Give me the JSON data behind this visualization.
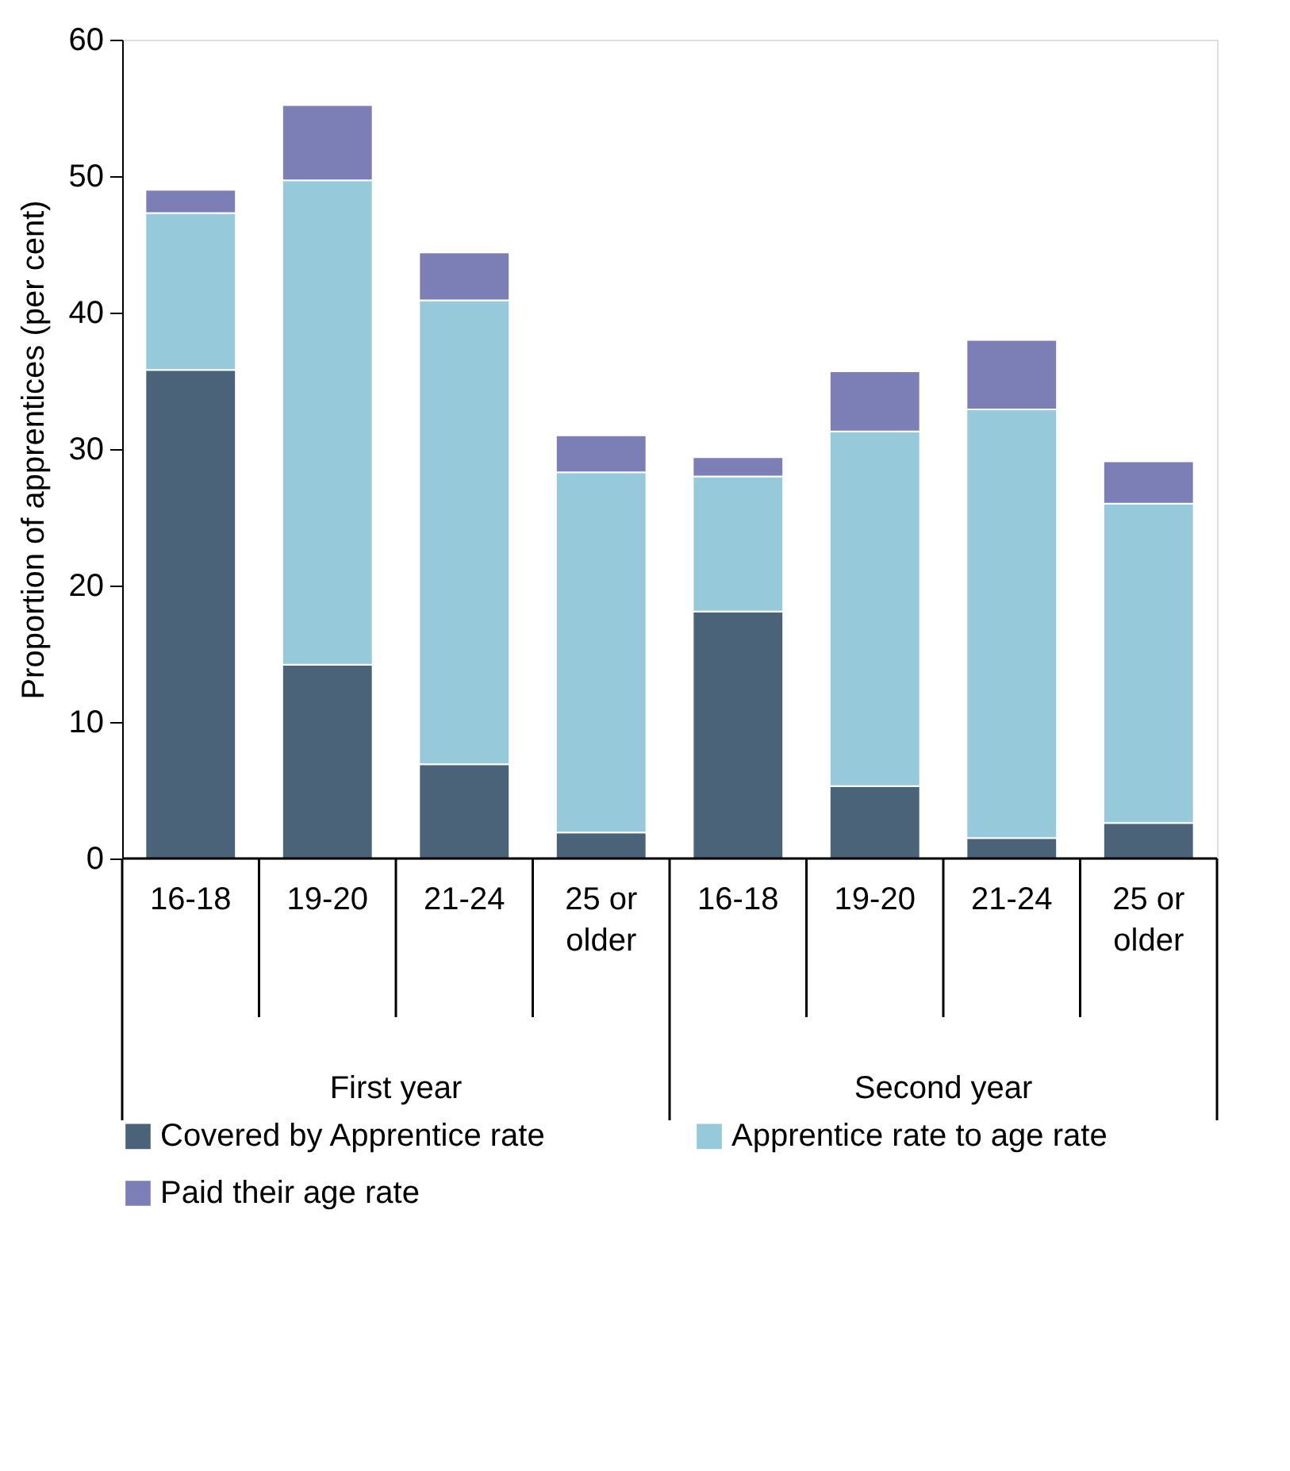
{
  "chart_data": {
    "type": "bar",
    "stacked": true,
    "categories": [
      "16-18",
      "19-20",
      "21-24",
      "25 or older",
      "16-18",
      "19-20",
      "21-24",
      "25 or older"
    ],
    "annotations": [
      "First year",
      "Second year"
    ],
    "ylabel": "Proportion of apprentices (per cent)",
    "ylim": [
      0,
      60
    ],
    "yticks": [
      0,
      10,
      20,
      30,
      40,
      50,
      60
    ],
    "grid": false,
    "legend": "bottom",
    "series": [
      {
        "name": "Covered by Apprentice rate",
        "color": "#4a6378",
        "values": [
          35.8,
          14.2,
          6.9,
          1.9,
          18.1,
          5.3,
          1.5,
          2.6
        ]
      },
      {
        "name": "Apprentice rate to age rate",
        "color": "#96c9da",
        "values": [
          11.5,
          35.5,
          34.0,
          26.4,
          9.9,
          26.0,
          31.4,
          23.4
        ]
      },
      {
        "name": "Paid their age rate",
        "color": "#7b7fb5",
        "values": [
          1.7,
          5.5,
          3.5,
          2.7,
          1.4,
          4.4,
          5.1,
          3.1
        ]
      }
    ]
  }
}
